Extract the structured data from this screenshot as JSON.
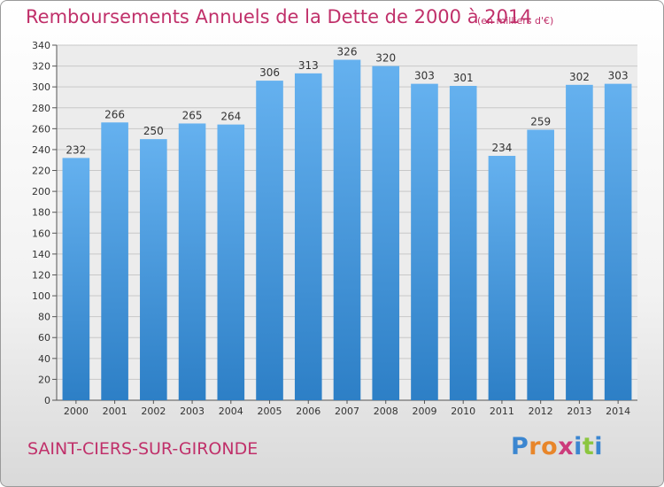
{
  "header": {
    "title": "Remboursements Annuels de la Dette de 2000 à 2014",
    "unit": "(en milliers d'€)"
  },
  "footer": {
    "city": "SAINT-CIERS-SUR-GIRONDE",
    "logo_text": "Proxiti"
  },
  "colors": {
    "title": "#c0306a",
    "bar_top": "#65b1ef",
    "bar_bottom": "#2d7fc6",
    "logo": [
      "#3b86d0",
      "#e8862a",
      "#e8862a",
      "#cc3b7b",
      "#3b86d0",
      "#8cc63f",
      "#3b86d0"
    ]
  },
  "chart_data": {
    "type": "bar",
    "title": "Remboursements Annuels de la Dette de 2000 à 2014",
    "categories": [
      "2000",
      "2001",
      "2002",
      "2003",
      "2004",
      "2005",
      "2006",
      "2007",
      "2008",
      "2009",
      "2010",
      "2011",
      "2012",
      "2013",
      "2014"
    ],
    "values": [
      232,
      266,
      250,
      265,
      264,
      306,
      313,
      326,
      320,
      303,
      301,
      234,
      259,
      302,
      303
    ],
    "ylim": [
      0,
      340
    ],
    "yticks": [
      0,
      20,
      40,
      60,
      80,
      100,
      120,
      140,
      160,
      180,
      200,
      220,
      240,
      260,
      280,
      300,
      320,
      340
    ],
    "grid": true,
    "data_labels": true
  }
}
